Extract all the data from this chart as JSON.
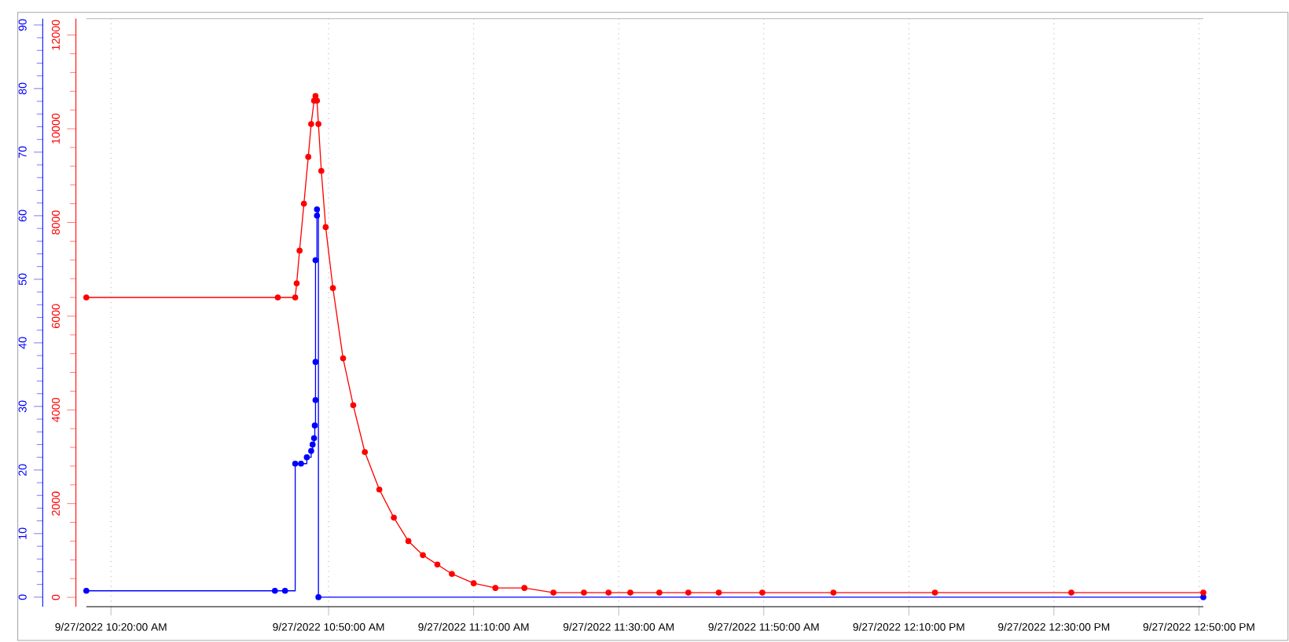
{
  "chart_data": {
    "type": "step",
    "xlim": [
      "2022-09-27T10:16:36",
      "2022-09-27T12:50:36"
    ],
    "xticks": [
      {
        "value": "2022-09-27T10:20",
        "label": "9/27/2022 10:20:00 AM"
      },
      {
        "value": "2022-09-27T10:50",
        "label": "9/27/2022 10:50:00 AM"
      },
      {
        "value": "2022-09-27T11:10",
        "label": "9/27/2022 11:10:00 AM"
      },
      {
        "value": "2022-09-27T11:30",
        "label": "9/27/2022 11:30:00 AM"
      },
      {
        "value": "2022-09-27T11:50",
        "label": "9/27/2022 11:50:00 AM"
      },
      {
        "value": "2022-09-27T12:10",
        "label": "9/27/2022 12:10:00 PM"
      },
      {
        "value": "2022-09-27T12:30",
        "label": "9/27/2022 12:30:00 PM"
      },
      {
        "value": "2022-09-27T12:50",
        "label": "9/27/2022 12:50:00 PM"
      }
    ],
    "ylim": [
      -1.5,
      91
    ],
    "yticks": [
      0,
      10,
      20,
      30,
      40,
      50,
      60,
      70,
      80,
      90
    ],
    "y2lim": [
      -200,
      12350
    ],
    "y2ticks": [
      0,
      2000,
      4000,
      6000,
      8000,
      10000,
      12000
    ],
    "grid": "x",
    "marker": "circle",
    "series": [
      {
        "color": "#0000ff",
        "x": [
          "2022-09-27T10:16:36",
          "2022-09-27T10:42:36",
          "2022-09-27T10:44:00",
          "2022-09-27T10:45:24",
          "2022-09-27T10:46:12",
          "2022-09-27T10:47:00",
          "2022-09-27T10:47:36",
          "2022-09-27T10:47:48",
          "2022-09-27T10:48:00",
          "2022-09-27T10:48:06",
          "2022-09-27T10:48:12",
          "2022-09-27T10:48:12",
          "2022-09-27T10:48:12",
          "2022-09-27T10:48:24",
          "2022-09-27T10:48:24",
          "2022-09-27T10:48:36",
          "2022-09-27T12:50:36"
        ],
        "values": [
          1,
          1,
          1,
          21,
          21,
          22,
          23,
          24,
          25,
          27,
          31,
          37,
          53,
          60,
          61,
          0,
          0
        ]
      },
      {
        "color": "#ff0000",
        "axis": "y2",
        "type": "line",
        "x": [
          "2022-09-27T10:16:36",
          "2022-09-27T10:43:00",
          "2022-09-27T10:45:24",
          "2022-09-27T10:45:36",
          "2022-09-27T10:46:00",
          "2022-09-27T10:46:36",
          "2022-09-27T10:47:12",
          "2022-09-27T10:47:36",
          "2022-09-27T10:48:00",
          "2022-09-27T10:48:12",
          "2022-09-27T10:48:24",
          "2022-09-27T10:48:36",
          "2022-09-27T10:49:00",
          "2022-09-27T10:49:36",
          "2022-09-27T10:50:36",
          "2022-09-27T10:52:00",
          "2022-09-27T10:53:24",
          "2022-09-27T10:55:00",
          "2022-09-27T10:57:00",
          "2022-09-27T10:59:00",
          "2022-09-27T11:01:00",
          "2022-09-27T11:03:00",
          "2022-09-27T11:05:00",
          "2022-09-27T11:07:00",
          "2022-09-27T11:10:00",
          "2022-09-27T11:13:00",
          "2022-09-27T11:17:00",
          "2022-09-27T11:21:00",
          "2022-09-27T11:25:12",
          "2022-09-27T11:28:36",
          "2022-09-27T11:31:36",
          "2022-09-27T11:35:36",
          "2022-09-27T11:39:36",
          "2022-09-27T11:43:48",
          "2022-09-27T11:49:48",
          "2022-09-27T11:59:36",
          "2022-09-27T12:13:36",
          "2022-09-27T12:32:24",
          "2022-09-27T12:50:36"
        ],
        "values": [
          6400,
          6400,
          6400,
          6700,
          7400,
          8400,
          9400,
          10100,
          10600,
          10700,
          10600,
          10100,
          9100,
          7900,
          6600,
          5100,
          4100,
          3100,
          2300,
          1700,
          1200,
          900,
          700,
          500,
          300,
          200,
          200,
          100,
          100,
          100,
          100,
          100,
          100,
          100,
          100,
          100,
          100,
          100,
          100
        ]
      }
    ]
  }
}
